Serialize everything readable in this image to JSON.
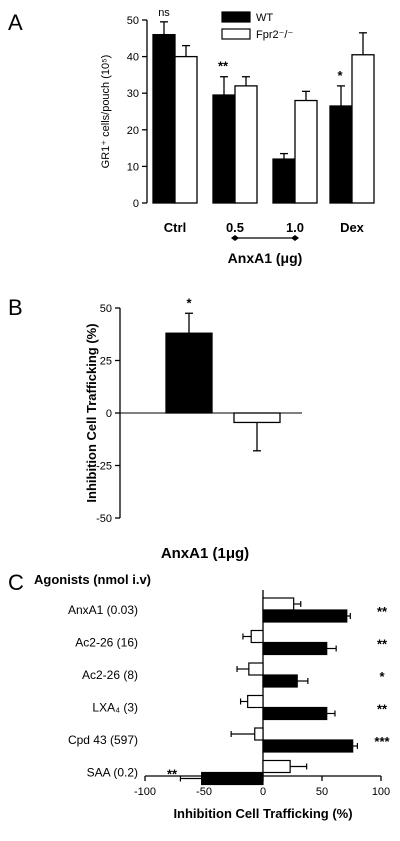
{
  "chart_data": [
    {
      "panel": "A",
      "type": "bar",
      "ylabel": "GR1⁺ cells/pouch (10⁵)",
      "ylim": [
        0,
        50
      ],
      "yticks": [
        "0",
        "10",
        "20",
        "30",
        "40",
        "50"
      ],
      "categories": [
        "Ctrl",
        "0.5",
        "1.0",
        "Dex"
      ],
      "xlabel": "AnxA1 (μg)",
      "legend_position": "top-center",
      "series": [
        {
          "name": "WT",
          "color": "#000000",
          "values": [
            46,
            29.5,
            12,
            26.5
          ],
          "errors": [
            3.5,
            5,
            1.5,
            5.5
          ]
        },
        {
          "name": "Fpr2⁻/⁻",
          "color": "#ffffff",
          "values": [
            40,
            32,
            28,
            40.5
          ],
          "errors": [
            3,
            2.5,
            2.5,
            6
          ]
        }
      ],
      "annotations": [
        "ns",
        "**",
        "",
        "*"
      ]
    },
    {
      "panel": "B",
      "type": "bar",
      "ylabel": "Inhibition Cell Trafficking (%)",
      "ylim": [
        -50,
        50
      ],
      "yticks": [
        "-50",
        "-25",
        "0",
        "25",
        "50"
      ],
      "xlabel": "AnxA1 (1μg)",
      "series": [
        {
          "color": "#000000",
          "values": [
            38
          ],
          "errors": [
            9.5
          ]
        },
        {
          "color": "#ffffff",
          "values": [
            -4.5
          ],
          "errors": [
            13.5
          ]
        }
      ],
      "annotations": [
        "*",
        ""
      ]
    },
    {
      "panel": "C",
      "type": "bar",
      "orientation": "horizontal",
      "title": "Agonists (nmol i.v)",
      "xlabel": "Inhibition Cell Trafficking (%)",
      "xlim": [
        -100,
        100
      ],
      "xticks": [
        "-100",
        "-50",
        "0",
        "50",
        "100"
      ],
      "categories": [
        "AnxA1 (0.03)",
        "Ac2-26 (16)",
        "Ac2-26 (8)",
        "LXA₄ (3)",
        "Cpd 43 (597)",
        "SAA (0.2)"
      ],
      "series": [
        {
          "color": "#ffffff",
          "values": [
            26,
            -10,
            -12,
            -13,
            -7,
            23
          ],
          "errors": [
            6,
            7,
            10,
            6,
            20,
            14
          ]
        },
        {
          "color": "#000000",
          "values": [
            71,
            54,
            29,
            54,
            76,
            -52
          ],
          "errors": [
            3,
            8,
            9,
            7,
            4,
            18
          ]
        }
      ],
      "annotations": [
        "**",
        "**",
        "*",
        "**",
        "***",
        "**"
      ]
    }
  ]
}
